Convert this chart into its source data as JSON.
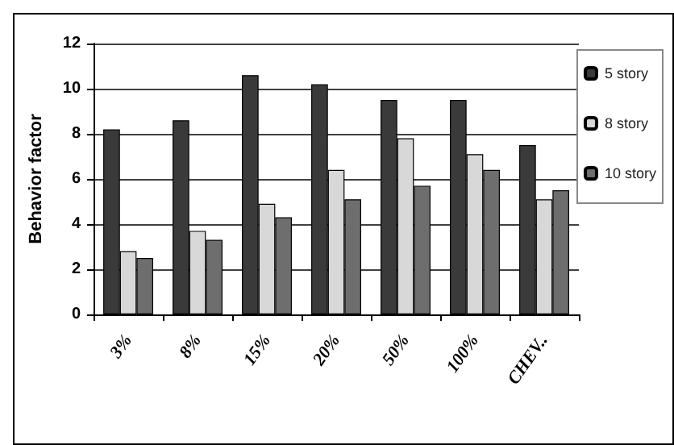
{
  "chart_data": {
    "type": "bar",
    "ylabel": "Behavior factor",
    "categories": [
      "3%",
      "8%",
      "15%",
      "20%",
      "50%",
      "100%",
      "CHEV.."
    ],
    "series": [
      {
        "name": "5 story",
        "color": "#3a3a3a",
        "values": [
          8.2,
          8.6,
          10.6,
          10.2,
          9.5,
          9.5,
          7.5
        ]
      },
      {
        "name": "8 story",
        "color": "#d8d8d8",
        "values": [
          2.8,
          3.7,
          4.9,
          6.4,
          7.8,
          7.1,
          5.1
        ]
      },
      {
        "name": "10 story",
        "color": "#6e6e6e",
        "values": [
          2.5,
          3.3,
          4.3,
          5.1,
          5.7,
          6.4,
          5.5
        ]
      }
    ],
    "ylim": [
      0,
      12
    ],
    "yticks": [
      0,
      2,
      4,
      6,
      8,
      10,
      12
    ],
    "grid": "y",
    "legend": "right"
  }
}
